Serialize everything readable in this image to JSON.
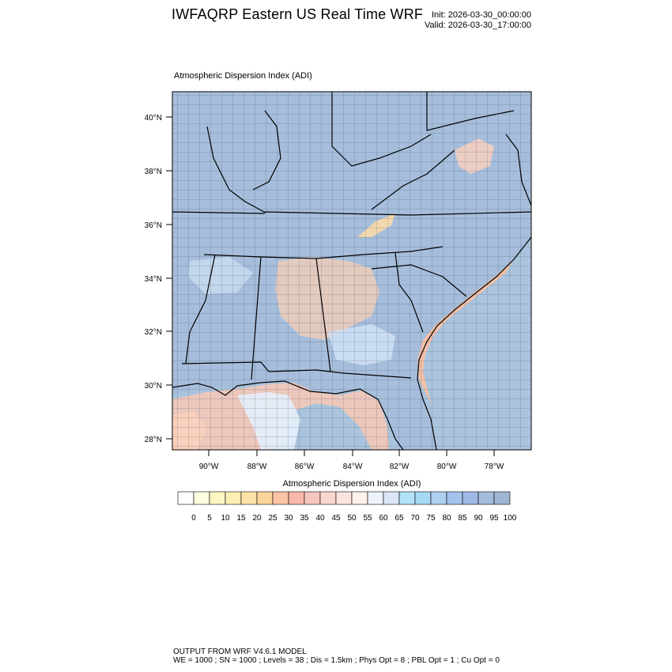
{
  "header": {
    "title": "IWFAQRP Eastern US Real Time WRF",
    "init": "Init: 2026-03-30_00:00:00",
    "valid": "Valid: 2026-03-30_17:00:00"
  },
  "panel_title": "Atmospheric Dispersion Index   (ADI)",
  "map": {
    "lat_labels": [
      "40°N",
      "38°N",
      "36°N",
      "34°N",
      "32°N",
      "30°N",
      "28°N"
    ],
    "lon_labels": [
      "90°W",
      "88°W",
      "86°W",
      "84°W",
      "82°W",
      "80°W",
      "78°W"
    ]
  },
  "colorbar": {
    "title": "Atmospheric Dispersion Index  (ADI)",
    "labels": [
      "0",
      "5",
      "10",
      "15",
      "20",
      "25",
      "30",
      "35",
      "40",
      "45",
      "50",
      "55",
      "60",
      "65",
      "70",
      "75",
      "80",
      "85",
      "90",
      "95",
      "100"
    ],
    "colors": [
      "#ffffff",
      "#fefee0",
      "#fdf6c2",
      "#fdeeb3",
      "#fde3a8",
      "#fcd49c",
      "#fbc4a4",
      "#f8b8aa",
      "#f7c6bf",
      "#f9d6d0",
      "#fbe4de",
      "#fdf1ea",
      "#eef2fb",
      "#dce6f6",
      "#b2e2f8",
      "#a6daf5",
      "#aed0f0",
      "#a3c2ec",
      "#9fb8e4",
      "#a4bcdc",
      "#9fb6d2"
    ]
  },
  "footer": {
    "line1": "OUTPUT FROM WRF V4.6.1 MODEL",
    "line2": "WE = 1000 ; SN = 1000 ; Levels = 38 ; Dis = 1.5km ; Phys Opt = 8 ; PBL Opt = 1 ; Cu Opt = 0"
  }
}
